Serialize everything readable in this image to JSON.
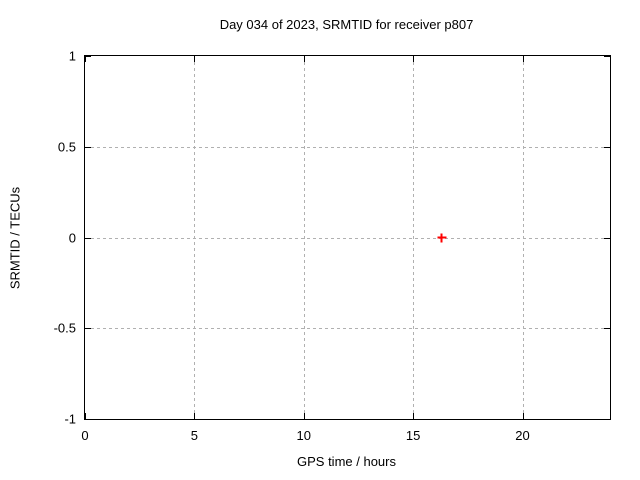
{
  "chart_data": {
    "type": "scatter",
    "title": "Day 034 of 2023, SRMTID for receiver p807",
    "xlabel": "GPS time / hours",
    "ylabel": "SRMTID / TECUs",
    "xlim": [
      0,
      24
    ],
    "ylim": [
      -1,
      1
    ],
    "xticks": [
      {
        "value": 0,
        "label": "0"
      },
      {
        "value": 5,
        "label": "5"
      },
      {
        "value": 10,
        "label": "10"
      },
      {
        "value": 15,
        "label": "15"
      },
      {
        "value": 20,
        "label": "20"
      }
    ],
    "yticks": [
      {
        "value": -1,
        "label": "-1"
      },
      {
        "value": -0.5,
        "label": "-0.5"
      },
      {
        "value": 0,
        "label": "0"
      },
      {
        "value": 0.5,
        "label": "0.5"
      },
      {
        "value": 1,
        "label": "1"
      }
    ],
    "grid": true,
    "grid_style": "dashed",
    "legend": "none",
    "series": [
      {
        "name": "SRMTID",
        "marker": "plus",
        "color": "#ff0000",
        "points": [
          {
            "x": 16.3,
            "y": 0.0
          }
        ]
      }
    ]
  },
  "colors": {
    "background": "#ffffff",
    "border": "#000000",
    "grid": "#b0b0b0",
    "text": "#000000",
    "marker": "#ff0000"
  }
}
